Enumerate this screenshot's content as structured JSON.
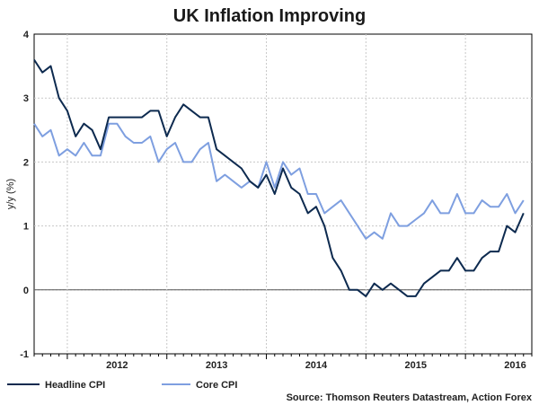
{
  "chart_data": {
    "type": "line",
    "title": "UK Inflation Improving",
    "xlabel": "",
    "ylabel": "y/y (%)",
    "ylim": [
      -1,
      4
    ],
    "y_ticks": [
      "4",
      "3",
      "2",
      "1",
      "0",
      "-1"
    ],
    "x_tick_labels": [
      "2012",
      "2013",
      "2014",
      "2015",
      "2016"
    ],
    "x_start": "2011-09",
    "x_end": "2016-09",
    "series": [
      {
        "name": "Headline CPI",
        "color": "#0d2a4f",
        "start": "2011-09",
        "values": [
          3.6,
          3.4,
          3.5,
          3.0,
          2.8,
          2.4,
          2.6,
          2.5,
          2.2,
          2.7,
          2.7,
          2.7,
          2.7,
          2.7,
          2.8,
          2.8,
          2.4,
          2.7,
          2.9,
          2.8,
          2.7,
          2.7,
          2.2,
          2.1,
          2.0,
          1.9,
          1.7,
          1.6,
          1.8,
          1.5,
          1.9,
          1.6,
          1.5,
          1.2,
          1.3,
          1.0,
          0.5,
          0.3,
          0.0,
          0.0,
          -0.1,
          0.1,
          0.0,
          0.1,
          0.0,
          -0.1,
          -0.1,
          0.1,
          0.2,
          0.3,
          0.3,
          0.5,
          0.3,
          0.3,
          0.5,
          0.6,
          0.6,
          1.0,
          0.9,
          1.2
        ]
      },
      {
        "name": "Core CPI",
        "color": "#7e9fe0",
        "start": "2011-09",
        "values": [
          2.6,
          2.4,
          2.5,
          2.1,
          2.2,
          2.1,
          2.3,
          2.1,
          2.1,
          2.6,
          2.6,
          2.4,
          2.3,
          2.3,
          2.4,
          2.0,
          2.2,
          2.3,
          2.0,
          2.0,
          2.2,
          2.3,
          1.7,
          1.8,
          1.7,
          1.6,
          1.7,
          1.6,
          2.0,
          1.6,
          2.0,
          1.8,
          1.9,
          1.5,
          1.5,
          1.2,
          1.3,
          1.4,
          1.2,
          1.0,
          0.8,
          0.9,
          0.8,
          1.2,
          1.0,
          1.0,
          1.1,
          1.2,
          1.4,
          1.2,
          1.2,
          1.5,
          1.2,
          1.2,
          1.4,
          1.3,
          1.3,
          1.5,
          1.2,
          1.4
        ]
      }
    ],
    "legend": [
      "Headline CPI",
      "Core CPI"
    ],
    "legend_position": "bottom-left",
    "source": "Source: Thomson Reuters Datastream, Action Forex",
    "grid": true
  }
}
